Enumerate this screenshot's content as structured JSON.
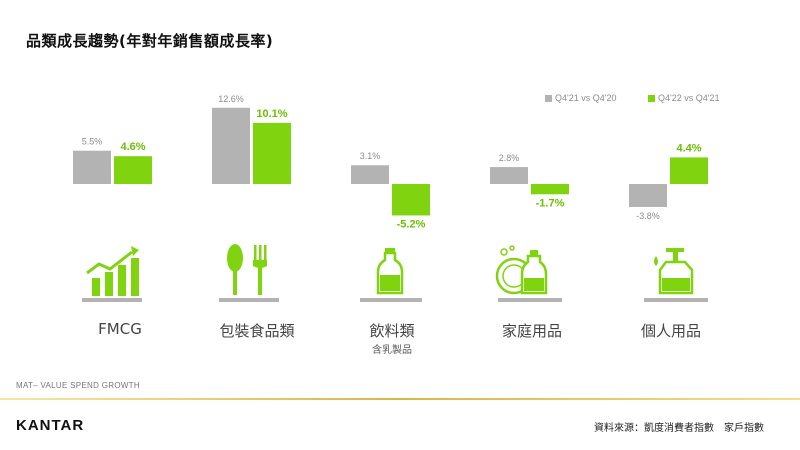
{
  "title": "品類成長趨勢(年對年銷售額成長率)",
  "chart_data": {
    "type": "bar",
    "categories": [
      "FMCG",
      "包裝食品類",
      "飲料類",
      "家庭用品",
      "個人用品"
    ],
    "category_sublabels": [
      "",
      "",
      "含乳製品",
      "",
      ""
    ],
    "series": [
      {
        "name": "Q4'21 vs Q4'20",
        "values": [
          5.5,
          12.6,
          3.1,
          2.8,
          -3.8
        ],
        "labels": [
          "5.5%",
          "12.6%",
          "3.1%",
          "2.8%",
          "-3.8%"
        ],
        "color": "#b3b3b3"
      },
      {
        "name": "Q4'22 vs Q4'21",
        "values": [
          4.6,
          10.1,
          -5.2,
          -1.7,
          4.4
        ],
        "labels": [
          "4.6%",
          "10.1%",
          "-5.2%",
          "-1.7%",
          "4.4%"
        ],
        "color": "#7fd40f"
      }
    ],
    "legend_position": "top-right",
    "grid": false
  },
  "icons": [
    "growth-chart-icon",
    "fork-spoon-icon",
    "milk-bottle-icon",
    "dish-soap-icon",
    "pump-bottle-icon"
  ],
  "footnote": "MAT– VALUE SPEND GROWTH",
  "brand": "KANTAR",
  "source": "資料來源：凱度消費者指數　家戶指數"
}
